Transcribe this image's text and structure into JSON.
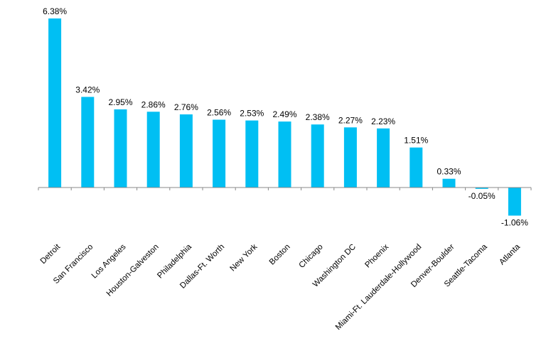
{
  "chart_data": {
    "type": "bar",
    "categories": [
      "Detroit",
      "San Francisco",
      "Los Angeles",
      "Houston-Galveston",
      "Philadelphia",
      "Dallas-Ft. Worth",
      "New York",
      "Boston",
      "Chicago",
      "Washington DC",
      "Phoenix",
      "Miami-Ft. Lauderdale-Hollywood",
      "Denver-Boulder",
      "Seattle-Tacoma",
      "Atlanta"
    ],
    "values": [
      6.38,
      3.42,
      2.95,
      2.86,
      2.76,
      2.56,
      2.53,
      2.49,
      2.38,
      2.27,
      2.23,
      1.51,
      0.33,
      -0.05,
      -1.06
    ],
    "data_labels": [
      "6.38%",
      "3.42%",
      "2.95%",
      "2.86%",
      "2.76%",
      "2.56%",
      "2.53%",
      "2.49%",
      "2.38%",
      "2.27%",
      "2.23%",
      "1.51%",
      "0.33%",
      "-0.05%",
      "-1.06%"
    ],
    "title": "",
    "xlabel": "",
    "ylabel": "",
    "ylim": [
      -1.06,
      6.38
    ],
    "grid": false,
    "bar_color": "#00BFF3",
    "axis_color": "#888888"
  }
}
